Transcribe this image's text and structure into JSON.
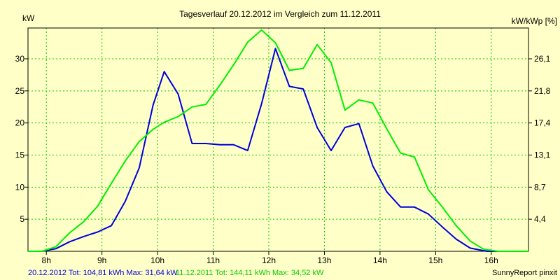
{
  "chart_data": {
    "type": "line",
    "title": "Tagesverlauf 20.12.2012 im Vergleich zum 11.12.2011",
    "ylabel_left": "kW",
    "ylabel_right": "kW/kWp [%]",
    "x_ticks": [
      "8h",
      "9h",
      "10h",
      "11h",
      "12h",
      "13h",
      "14h",
      "15h",
      "16h"
    ],
    "y_ticks_left": [
      "5",
      "10",
      "15",
      "20",
      "25",
      "30"
    ],
    "y_ticks_right": [
      "4,4",
      "8,7",
      "13,1",
      "17,4",
      "21,8",
      "26,1"
    ],
    "xlim": [
      7.67,
      16.67
    ],
    "ylim": [
      0,
      34.8
    ],
    "grid": true,
    "series": [
      {
        "name": "20.12.2012",
        "color": "#0000dd",
        "x": [
          7.67,
          7.92,
          8.17,
          8.42,
          8.67,
          8.92,
          9.17,
          9.42,
          9.67,
          9.92,
          10.12,
          10.37,
          10.62,
          10.87,
          11.12,
          11.37,
          11.62,
          11.87,
          12.12,
          12.37,
          12.62,
          12.87,
          13.12,
          13.37,
          13.62,
          13.87,
          14.12,
          14.37,
          14.62,
          14.87,
          15.12,
          15.37,
          15.62,
          15.92,
          16.17,
          16.67
        ],
        "values": [
          0,
          0,
          0.4,
          1.5,
          2.3,
          3.0,
          4.0,
          7.8,
          13.0,
          22.8,
          28.0,
          24.5,
          16.8,
          16.8,
          16.6,
          16.6,
          15.7,
          23.0,
          31.6,
          25.7,
          25.3,
          19.3,
          15.7,
          19.3,
          19.9,
          13.3,
          9.3,
          6.9,
          6.9,
          5.8,
          3.8,
          1.9,
          0.5,
          0,
          0,
          0
        ]
      },
      {
        "name": "11.12.2011",
        "color": "#00ee00",
        "x": [
          7.67,
          7.92,
          8.17,
          8.42,
          8.67,
          8.92,
          9.17,
          9.42,
          9.67,
          9.92,
          10.12,
          10.37,
          10.62,
          10.87,
          11.12,
          11.37,
          11.62,
          11.87,
          12.12,
          12.37,
          12.62,
          12.87,
          13.12,
          13.37,
          13.62,
          13.87,
          14.12,
          14.37,
          14.62,
          14.87,
          15.12,
          15.37,
          15.62,
          15.87,
          16.12,
          16.67
        ],
        "values": [
          0,
          0,
          0.7,
          2.9,
          4.6,
          7.0,
          10.6,
          14.1,
          17.1,
          19.0,
          20.1,
          21.0,
          22.5,
          22.9,
          25.9,
          29.1,
          32.6,
          34.5,
          32.5,
          28.2,
          28.5,
          32.2,
          29.4,
          22.0,
          23.6,
          23.1,
          19.1,
          15.3,
          14.7,
          9.6,
          6.9,
          4.0,
          1.6,
          0.3,
          0,
          0
        ]
      }
    ]
  },
  "footer": {
    "series1_text": "20.12.2012 Tot: 104,81 kWh Max: 31,64 kW",
    "series2_text": "11.12.2011 Tot: 144,11 kWh Max: 34,52 kW",
    "credit": "SunnyReport pinxit"
  }
}
